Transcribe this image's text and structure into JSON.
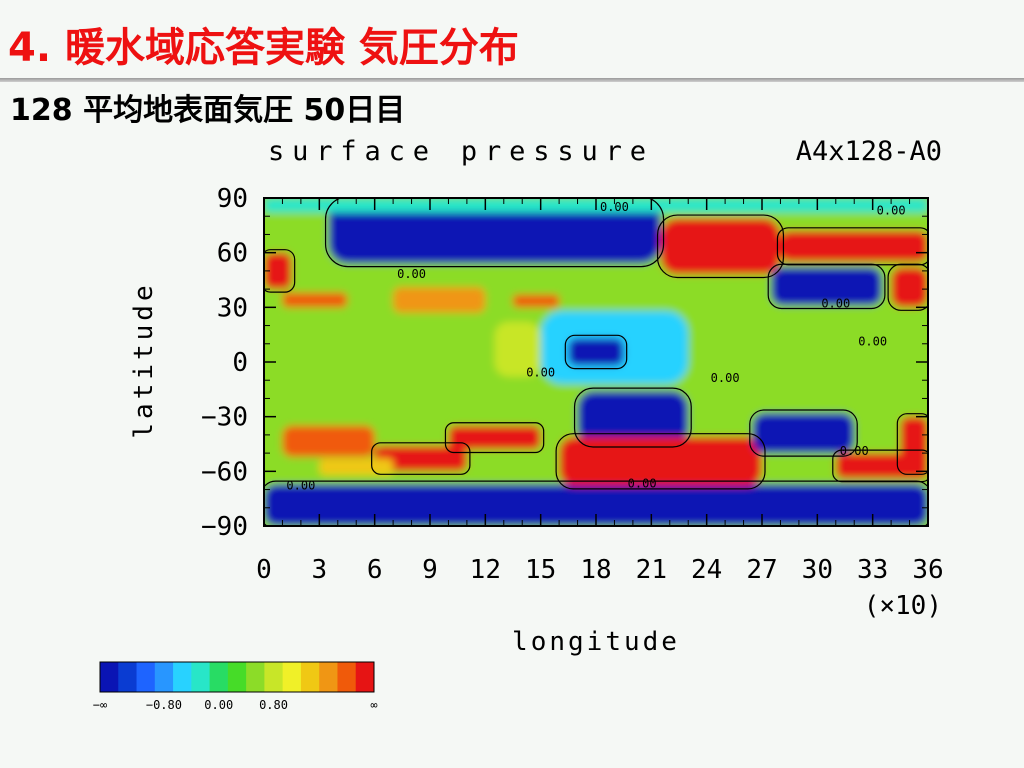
{
  "slide": {
    "title": "4. 暖水域応答実験 気圧分布",
    "subtitle": "128 平均地表面気圧 50日目"
  },
  "chart_data": {
    "type": "heatmap",
    "title": "surface pressure",
    "run_label": "A4x128-A0",
    "xlabel": "longitude",
    "ylabel": "latitude",
    "x_multiplier_label": "(×10)",
    "xlim": [
      0,
      36
    ],
    "ylim": [
      -90,
      90
    ],
    "x_ticks": [
      "0",
      "3",
      "6",
      "9",
      "12",
      "15",
      "18",
      "21",
      "24",
      "27",
      "30",
      "33",
      "36"
    ],
    "y_ticks": [
      "90",
      "60",
      "30",
      "0",
      "−30",
      "−60",
      "−90"
    ],
    "contour_labels": [
      {
        "text": "0.00",
        "lon": 19,
        "lat": 83
      },
      {
        "text": "0.00",
        "lon": 34,
        "lat": 81
      },
      {
        "text": "0.00",
        "lon": 8,
        "lat": 46
      },
      {
        "text": "0.00",
        "lon": 31,
        "lat": 30
      },
      {
        "text": "0.00",
        "lon": 33,
        "lat": 9
      },
      {
        "text": "0.00",
        "lon": 25,
        "lat": -11
      },
      {
        "text": "0.00",
        "lon": 15,
        "lat": -8
      },
      {
        "text": "0.00",
        "lon": 32,
        "lat": -51
      },
      {
        "text": "0.00",
        "lon": 20.5,
        "lat": -69
      },
      {
        "text": "0.00",
        "lon": 2,
        "lat": -70
      }
    ],
    "colorbar": {
      "colors": [
        "#0a14b4",
        "#0a3cd2",
        "#1e64ff",
        "#2896ff",
        "#28d2ff",
        "#28e6c8",
        "#28dc64",
        "#46dc28",
        "#8cdc28",
        "#c8e628",
        "#f0f028",
        "#f0c814",
        "#f09614",
        "#f05a0a",
        "#e61414"
      ],
      "tick_labels": [
        "−∞",
        "−0.80",
        "0.00",
        "0.80",
        "∞"
      ]
    },
    "regions": [
      {
        "lon": [
          0,
          36
        ],
        "lat": [
          -90,
          -67
        ],
        "level": 0
      },
      {
        "lon": [
          3.5,
          21.5
        ],
        "lat": [
          54,
          89
        ],
        "level": 0
      },
      {
        "lon": [
          0,
          36
        ],
        "lat": [
          82,
          90
        ],
        "level": 5
      },
      {
        "lon": [
          15,
          23
        ],
        "lat": [
          -12,
          28
        ],
        "level": 4
      },
      {
        "lon": [
          16.5,
          19.5
        ],
        "lat": [
          -2,
          13
        ],
        "level": 0
      },
      {
        "lon": [
          17,
          23
        ],
        "lat": [
          -45,
          -16
        ],
        "level": 0
      },
      {
        "lon": [
          21.5,
          28
        ],
        "lat": [
          48,
          79
        ],
        "level": 14
      },
      {
        "lon": [
          28,
          36
        ],
        "lat": [
          55,
          72
        ],
        "level": 14
      },
      {
        "lon": [
          27.5,
          33.5
        ],
        "lat": [
          31,
          52
        ],
        "level": 0
      },
      {
        "lon": [
          34,
          36
        ],
        "lat": [
          30,
          52
        ],
        "level": 14
      },
      {
        "lon": [
          16,
          27
        ],
        "lat": [
          -68,
          -41
        ],
        "level": 14
      },
      {
        "lon": [
          26.5,
          32
        ],
        "lat": [
          -50,
          -28
        ],
        "level": 0
      },
      {
        "lon": [
          31,
          36
        ],
        "lat": [
          -64,
          -50
        ],
        "level": 14
      },
      {
        "lon": [
          34.5,
          36
        ],
        "lat": [
          -60,
          -30
        ],
        "level": 14
      },
      {
        "lon": [
          0,
          1.5
        ],
        "lat": [
          40,
          60
        ],
        "level": 14
      },
      {
        "lon": [
          1,
          4.5
        ],
        "lat": [
          30,
          38
        ],
        "level": 13
      },
      {
        "lon": [
          7,
          12
        ],
        "lat": [
          27,
          41
        ],
        "level": 12
      },
      {
        "lon": [
          13.5,
          16
        ],
        "lat": [
          30,
          37
        ],
        "level": 13
      },
      {
        "lon": [
          1,
          6
        ],
        "lat": [
          -52,
          -35
        ],
        "level": 13
      },
      {
        "lon": [
          6,
          11
        ],
        "lat": [
          -60,
          -46
        ],
        "level": 14
      },
      {
        "lon": [
          10,
          15
        ],
        "lat": [
          -48,
          -35
        ],
        "level": 14
      },
      {
        "lon": [
          12.5,
          15
        ],
        "lat": [
          -8,
          22
        ],
        "level": 9
      },
      {
        "lon": [
          1,
          9
        ],
        "lat": [
          -20,
          20
        ],
        "level": 8
      },
      {
        "lon": [
          3,
          7
        ],
        "lat": [
          -62,
          -53
        ],
        "level": 11
      }
    ]
  }
}
